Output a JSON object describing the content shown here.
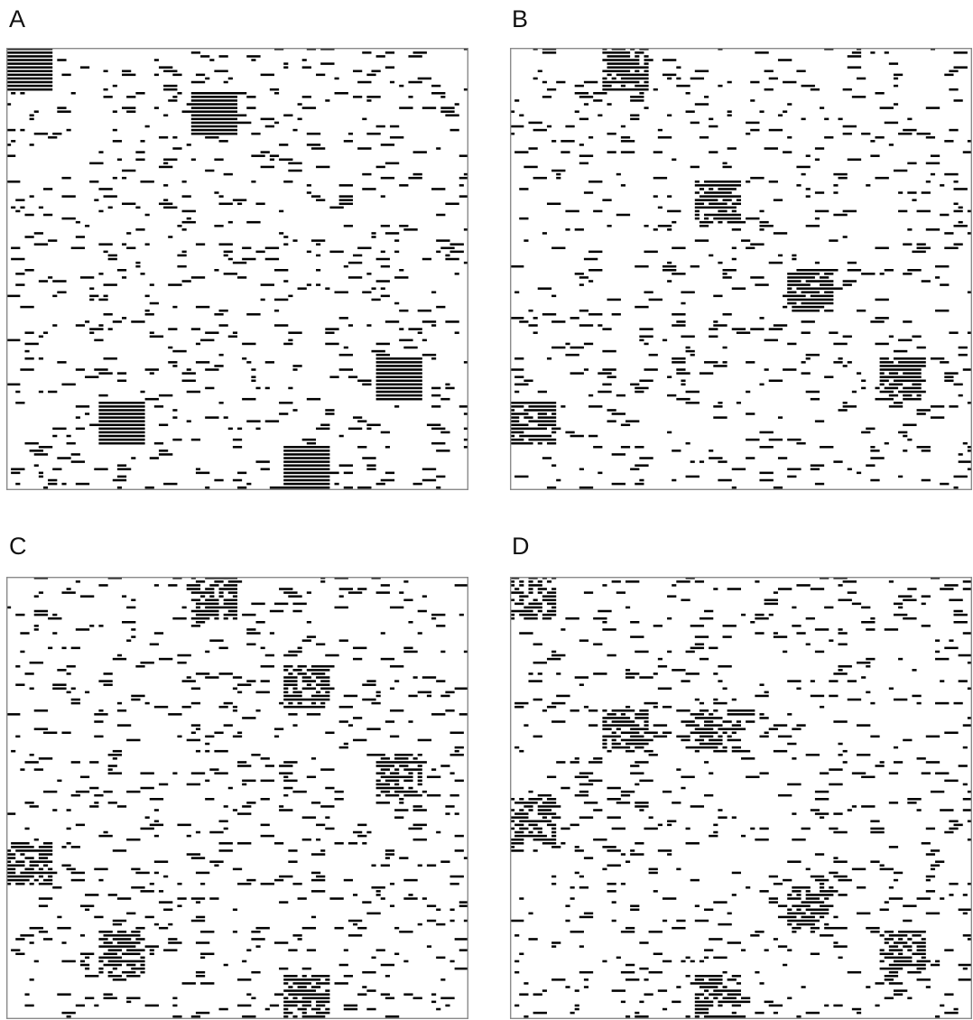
{
  "panels": [
    {
      "label": "A",
      "blocks": [
        [
          0,
          0
        ],
        [
          4,
          1
        ],
        [
          8,
          7
        ],
        [
          2,
          8
        ],
        [
          6,
          9
        ]
      ],
      "block_density": 1.0,
      "noise_density": 0.12
    },
    {
      "label": "B",
      "blocks": [
        [
          2,
          0
        ],
        [
          4,
          3
        ],
        [
          6,
          5
        ],
        [
          8,
          7
        ],
        [
          0,
          8
        ]
      ],
      "block_density": 0.8,
      "noise_density": 0.11
    },
    {
      "label": "C",
      "blocks": [
        [
          4,
          0
        ],
        [
          6,
          2
        ],
        [
          8,
          4
        ],
        [
          0,
          6
        ],
        [
          2,
          8
        ],
        [
          6,
          9
        ]
      ],
      "block_density": 0.68,
      "noise_density": 0.12
    },
    {
      "label": "D",
      "blocks": [
        [
          0,
          0
        ],
        [
          2,
          3
        ],
        [
          4,
          3
        ],
        [
          0,
          5
        ],
        [
          6,
          7
        ],
        [
          8,
          8
        ],
        [
          4,
          9
        ]
      ],
      "block_density": 0.62,
      "noise_density": 0.12
    }
  ],
  "colors": {
    "ink": "#000000",
    "frame": "#8a8a8a",
    "background": "#ffffff"
  }
}
